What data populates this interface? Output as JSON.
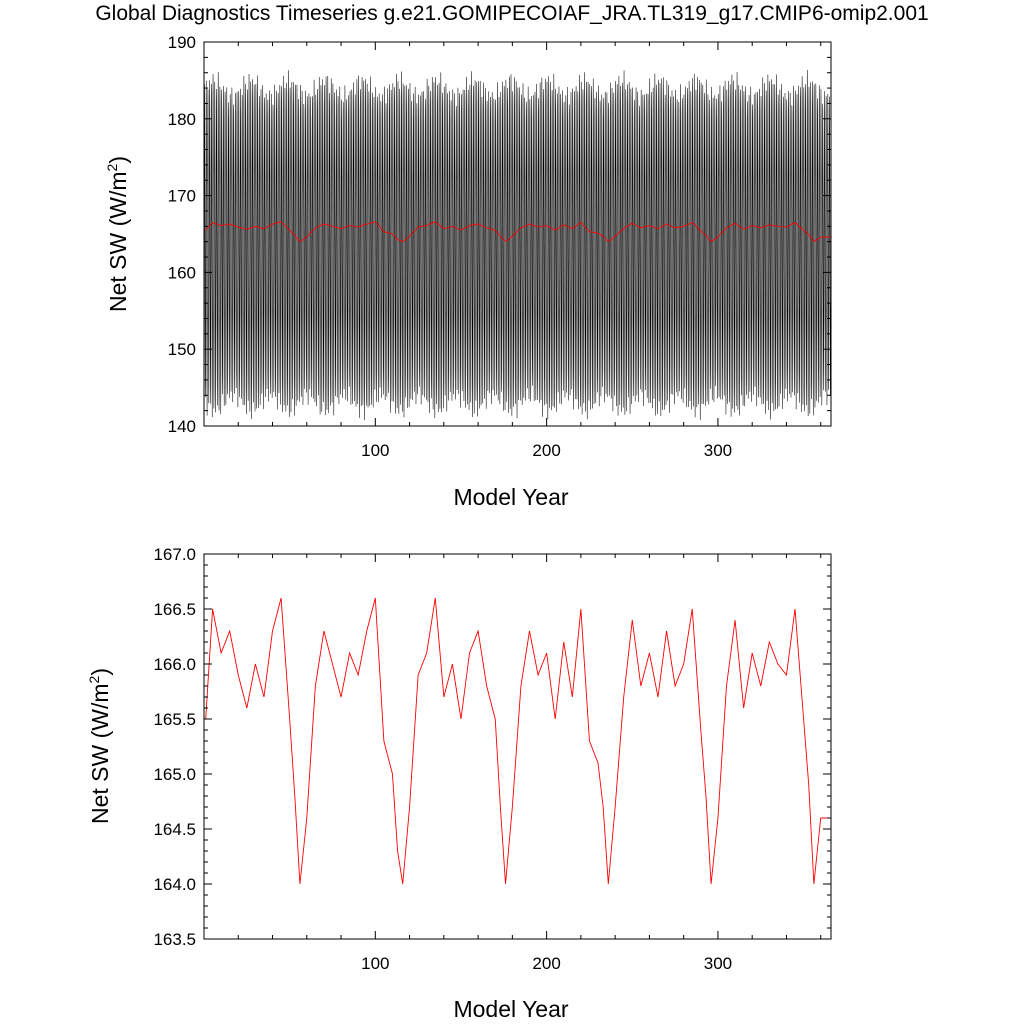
{
  "title": "Global Diagnostics Timeseries g.e21.GOMIPECOIAF_JRA.TL319_g17.CMIP6-omip2.001",
  "colors": {
    "monthly": "#000000",
    "annual": "#ff0000",
    "axis": "#000000"
  },
  "chart_data": [
    {
      "type": "line",
      "xlabel": "Model Year",
      "ylabel": "Net SW (W/m",
      "ylabel_sup": "2",
      "ylabel_close": ")",
      "xlim": [
        0,
        366
      ],
      "ylim": [
        140,
        190
      ],
      "x_ticks": [
        100,
        200,
        300
      ],
      "x_tick_labels": [
        "100",
        "200",
        "300"
      ],
      "y_ticks": [
        140,
        150,
        160,
        170,
        180,
        190
      ],
      "y_tick_labels": [
        "140",
        "150",
        "160",
        "170",
        "180",
        "190"
      ],
      "grid": false,
      "legend": "none",
      "series": [
        {
          "style": "monthly",
          "x_start": 0.04,
          "x_step": 0.0833,
          "count": 4392,
          "seasonal_cycle": [
            163.5,
            172.0,
            180.0,
            184.0,
            181.5,
            173.0,
            164.0,
            155.5,
            148.0,
            143.0,
            146.5,
            154.5
          ]
        },
        {
          "style": "annual",
          "x": [
            1,
            5,
            10,
            15,
            20,
            25,
            30,
            35,
            40,
            45,
            50,
            53,
            56,
            60,
            65,
            70,
            75,
            80,
            85,
            90,
            95,
            100,
            105,
            110,
            113,
            116,
            120,
            125,
            130,
            135,
            140,
            145,
            150,
            155,
            160,
            165,
            170,
            173,
            176,
            180,
            185,
            190,
            195,
            200,
            205,
            210,
            215,
            220,
            225,
            230,
            233,
            236,
            240,
            245,
            250,
            255,
            260,
            265,
            270,
            275,
            280,
            285,
            290,
            293,
            296,
            300,
            305,
            310,
            315,
            320,
            325,
            330,
            335,
            340,
            345,
            350,
            353,
            356,
            360,
            366
          ],
          "y": [
            165.5,
            166.5,
            166.1,
            166.3,
            165.9,
            165.6,
            166.0,
            165.7,
            166.3,
            166.6,
            165.5,
            164.8,
            164.0,
            164.6,
            165.8,
            166.3,
            166.0,
            165.7,
            166.1,
            165.9,
            166.3,
            166.6,
            165.3,
            165.0,
            164.3,
            164.0,
            164.7,
            165.9,
            166.1,
            166.6,
            165.7,
            166.0,
            165.5,
            166.1,
            166.3,
            165.8,
            165.5,
            164.7,
            164.0,
            164.7,
            165.8,
            166.3,
            165.9,
            166.1,
            165.5,
            166.2,
            165.7,
            166.5,
            165.3,
            165.1,
            164.7,
            164.0,
            164.7,
            165.7,
            166.4,
            165.8,
            166.1,
            165.7,
            166.3,
            165.8,
            166.0,
            166.5,
            165.4,
            164.8,
            164.0,
            164.6,
            165.8,
            166.4,
            165.6,
            166.1,
            165.8,
            166.2,
            166.0,
            165.9,
            166.5,
            165.5,
            164.9,
            164.0,
            164.6,
            164.6
          ]
        }
      ]
    },
    {
      "type": "line",
      "xlabel": "Model Year",
      "ylabel": "Net SW (W/m",
      "ylabel_sup": "2",
      "ylabel_close": ")",
      "xlim": [
        0,
        366
      ],
      "ylim": [
        163.5,
        167.0
      ],
      "x_ticks": [
        100,
        200,
        300
      ],
      "x_tick_labels": [
        "100",
        "200",
        "300"
      ],
      "y_ticks": [
        163.5,
        164.0,
        164.5,
        165.0,
        165.5,
        166.0,
        166.5,
        167.0
      ],
      "y_tick_labels": [
        "163.5",
        "164.0",
        "164.5",
        "165.0",
        "165.5",
        "166.0",
        "166.5",
        "167.0"
      ],
      "grid": false,
      "legend": "none",
      "series": [
        {
          "style": "annual",
          "x": [
            1,
            5,
            10,
            15,
            20,
            25,
            30,
            35,
            40,
            45,
            50,
            53,
            56,
            60,
            65,
            70,
            75,
            80,
            85,
            90,
            95,
            100,
            105,
            110,
            113,
            116,
            120,
            125,
            130,
            135,
            140,
            145,
            150,
            155,
            160,
            165,
            170,
            173,
            176,
            180,
            185,
            190,
            195,
            200,
            205,
            210,
            215,
            220,
            225,
            230,
            233,
            236,
            240,
            245,
            250,
            255,
            260,
            265,
            270,
            275,
            280,
            285,
            290,
            293,
            296,
            300,
            305,
            310,
            315,
            320,
            325,
            330,
            335,
            340,
            345,
            350,
            353,
            356,
            360,
            366
          ],
          "y": [
            165.5,
            166.5,
            166.1,
            166.3,
            165.9,
            165.6,
            166.0,
            165.7,
            166.3,
            166.6,
            165.5,
            164.8,
            164.0,
            164.6,
            165.8,
            166.3,
            166.0,
            165.7,
            166.1,
            165.9,
            166.3,
            166.6,
            165.3,
            165.0,
            164.3,
            164.0,
            164.7,
            165.9,
            166.1,
            166.6,
            165.7,
            166.0,
            165.5,
            166.1,
            166.3,
            165.8,
            165.5,
            164.7,
            164.0,
            164.7,
            165.8,
            166.3,
            165.9,
            166.1,
            165.5,
            166.2,
            165.7,
            166.5,
            165.3,
            165.1,
            164.7,
            164.0,
            164.7,
            165.7,
            166.4,
            165.8,
            166.1,
            165.7,
            166.3,
            165.8,
            166.0,
            166.5,
            165.4,
            164.8,
            164.0,
            164.6,
            165.8,
            166.4,
            165.6,
            166.1,
            165.8,
            166.2,
            166.0,
            165.9,
            166.5,
            165.5,
            164.9,
            164.0,
            164.6,
            164.6
          ]
        }
      ]
    }
  ]
}
